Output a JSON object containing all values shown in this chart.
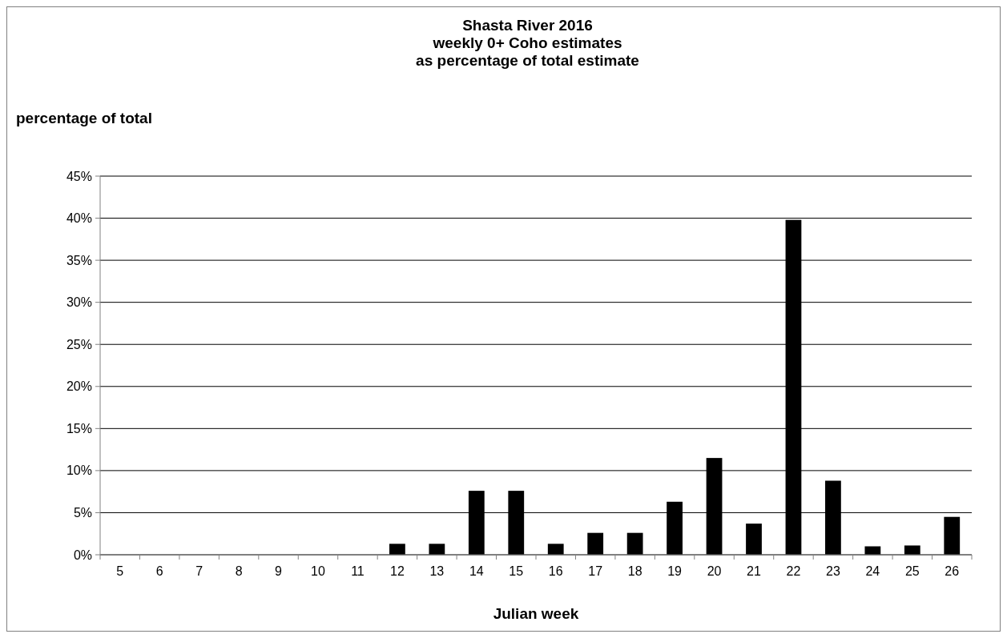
{
  "chart_data": {
    "type": "bar",
    "title": "Shasta River 2016\nweekly 0+ Coho estimates\nas percentage of total estimate",
    "xlabel": "Julian week",
    "ylabel": "percentage of total",
    "categories": [
      "5",
      "6",
      "7",
      "8",
      "9",
      "10",
      "11",
      "12",
      "13",
      "14",
      "15",
      "16",
      "17",
      "18",
      "19",
      "20",
      "21",
      "22",
      "23",
      "24",
      "25",
      "26"
    ],
    "values": [
      0,
      0,
      0,
      0,
      0,
      0,
      0,
      1.3,
      1.3,
      7.6,
      7.6,
      1.3,
      2.6,
      2.6,
      6.3,
      11.5,
      3.7,
      39.8,
      8.8,
      1.0,
      1.1,
      4.5
    ],
    "color": "#000000",
    "ylim": [
      0,
      45
    ],
    "yticks": [
      {
        "value": 0,
        "label": "0%"
      },
      {
        "value": 5,
        "label": "5%"
      },
      {
        "value": 10,
        "label": "10%"
      },
      {
        "value": 15,
        "label": "15%"
      },
      {
        "value": 20,
        "label": "20%"
      },
      {
        "value": 25,
        "label": "25%"
      },
      {
        "value": 30,
        "label": "30%"
      },
      {
        "value": 35,
        "label": "35%"
      },
      {
        "value": 40,
        "label": "40%"
      },
      {
        "value": 45,
        "label": "45%"
      }
    ],
    "grid": "y"
  }
}
